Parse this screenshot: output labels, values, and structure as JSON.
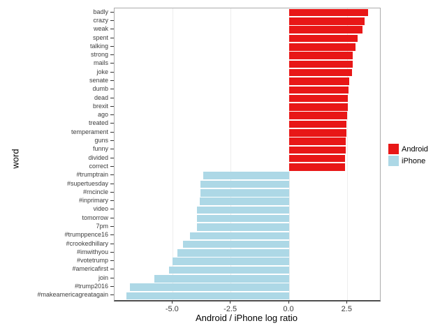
{
  "figure": {
    "background": "#ffffff"
  },
  "chart_data": {
    "type": "bar",
    "orientation": "horizontal",
    "title": "",
    "xlabel": "Android / iPhone log ratio",
    "ylabel": "word",
    "xlim": [
      -7.5,
      3.9
    ],
    "x_ticks": [
      -5.0,
      -2.5,
      0.0,
      2.5
    ],
    "x_tick_labels": [
      "-5.0",
      "-2.5",
      "0.0",
      "2.5"
    ],
    "grid": "vertical-major-only",
    "categories": [
      "badly",
      "crazy",
      "weak",
      "spent",
      "talking",
      "strong",
      "mails",
      "joke",
      "senate",
      "dumb",
      "dead",
      "brexit",
      "ago",
      "treated",
      "temperament",
      "guns",
      "funny",
      "divided",
      "correct",
      "#trumptrain",
      "#supertuesday",
      "#rncincle",
      "#inprimary",
      "video",
      "tomorrow",
      "7pm",
      "#trumppence16",
      "#crookedhillary",
      "#imwithyou",
      "#votetrump",
      "#americafirst",
      "join",
      "#trump2016",
      "#makeamericagreatagain"
    ],
    "values": [
      3.4,
      3.25,
      3.15,
      2.95,
      2.85,
      2.74,
      2.72,
      2.71,
      2.58,
      2.55,
      2.53,
      2.51,
      2.49,
      2.47,
      2.45,
      2.43,
      2.42,
      2.41,
      2.4,
      -3.7,
      -3.8,
      -3.82,
      -3.83,
      -3.95,
      -3.96,
      -3.97,
      -4.25,
      -4.55,
      -4.8,
      -5.0,
      -5.15,
      -5.8,
      -6.85,
      -7.0
    ],
    "series_rule": "positive values = Android, negative values = iPhone",
    "legend": {
      "position": "right",
      "entries": [
        {
          "label": "Android",
          "color": "#e81717"
        },
        {
          "label": "iPhone",
          "color": "#add8e6"
        }
      ]
    },
    "colors": {
      "android": "#e81717",
      "iphone": "#add8e6",
      "gridline": "#ededed",
      "panel_border": "#acacac",
      "axis_line": "#4d4d4d",
      "tick_text": "#3d3d3d"
    }
  }
}
